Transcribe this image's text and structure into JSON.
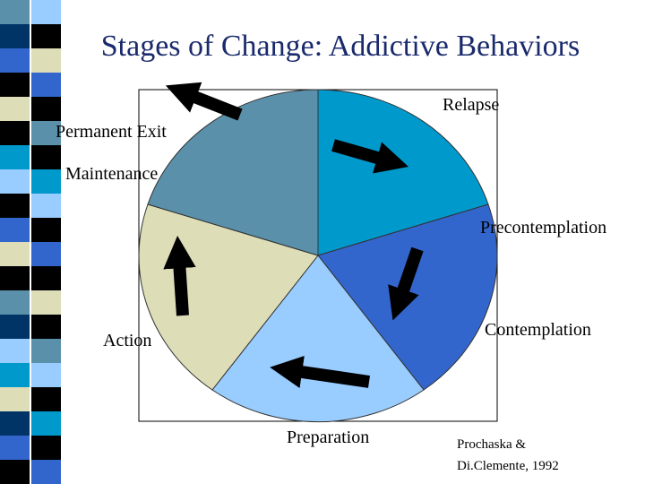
{
  "title": "Stages of Change: Addictive Behaviors",
  "nodes": [
    {
      "label": "Relapse"
    },
    {
      "label": "Permanent Exit"
    },
    {
      "label": "Maintenance"
    },
    {
      "label": "Precontemplation"
    },
    {
      "label": "Contemplation"
    },
    {
      "label": "Action"
    },
    {
      "label": "Preparation"
    }
  ],
  "citation": [
    "Prochaska &",
    "Di.Clemente, 1992"
  ]
}
